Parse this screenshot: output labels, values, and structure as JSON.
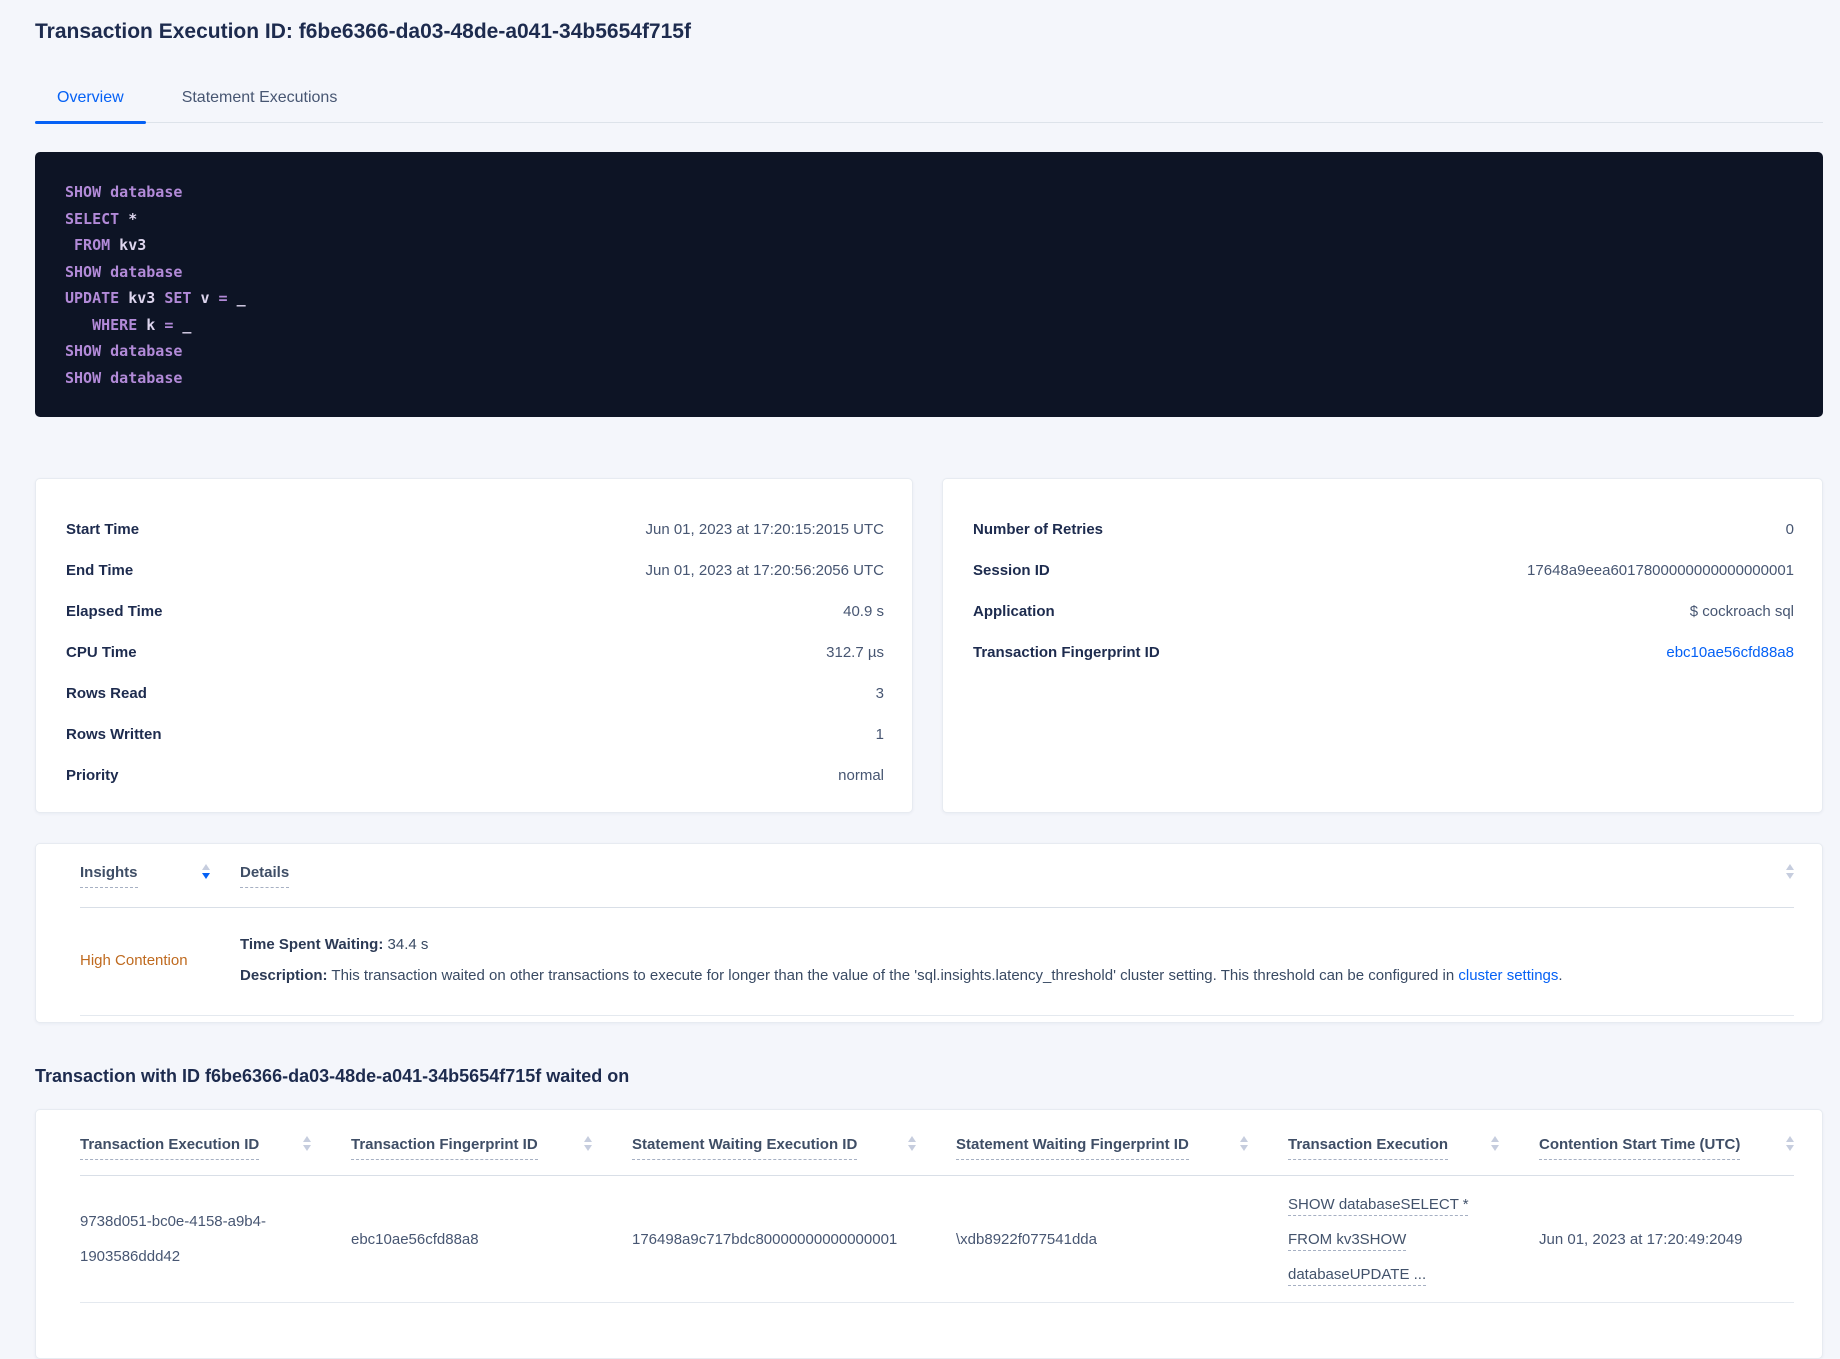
{
  "page": {
    "title": "Transaction Execution ID: f6be6366-da03-48de-a041-34b5654f715f"
  },
  "tabs": {
    "overview": "Overview",
    "statement_executions": "Statement Executions"
  },
  "sql": {
    "lines": [
      {
        "parts": [
          {
            "text": "SHOW database",
            "type": "kw"
          }
        ]
      },
      {
        "parts": [
          {
            "text": "SELECT",
            "type": "kw"
          },
          {
            "text": " *",
            "type": "id"
          }
        ]
      },
      {
        "parts": [
          {
            "text": " FROM",
            "type": "kw"
          },
          {
            "text": " kv3",
            "type": "id"
          }
        ]
      },
      {
        "parts": [
          {
            "text": "SHOW database",
            "type": "kw"
          }
        ]
      },
      {
        "parts": [
          {
            "text": "UPDATE",
            "type": "kw"
          },
          {
            "text": " kv3",
            "type": "id"
          },
          {
            "text": " SET",
            "type": "kw"
          },
          {
            "text": " v",
            "type": "id"
          },
          {
            "text": " =",
            "type": "kw"
          },
          {
            "text": " _",
            "type": "id"
          }
        ]
      },
      {
        "parts": [
          {
            "text": "   WHERE",
            "type": "kw"
          },
          {
            "text": " k",
            "type": "id"
          },
          {
            "text": " =",
            "type": "kw"
          },
          {
            "text": " _",
            "type": "id"
          }
        ]
      },
      {
        "parts": [
          {
            "text": "SHOW database",
            "type": "kw"
          }
        ]
      },
      {
        "parts": [
          {
            "text": "SHOW database",
            "type": "kw"
          }
        ]
      }
    ]
  },
  "time_stats": {
    "rows": [
      {
        "label": "Start Time",
        "value": "Jun 01, 2023 at 17:20:15:2015 UTC"
      },
      {
        "label": "End Time",
        "value": "Jun 01, 2023 at 17:20:56:2056 UTC"
      },
      {
        "label": "Elapsed Time",
        "value": "40.9 s"
      },
      {
        "label": "CPU Time",
        "value": "312.7 µs"
      },
      {
        "label": "Rows Read",
        "value": "3"
      },
      {
        "label": "Rows Written",
        "value": "1"
      },
      {
        "label": "Priority",
        "value": "normal"
      }
    ]
  },
  "exec_stats": {
    "rows": [
      {
        "label": "Number of Retries",
        "value": "0"
      },
      {
        "label": "Session ID",
        "value": "17648a9eea6017800000000000000001"
      },
      {
        "label": "Application",
        "value": "$ cockroach sql"
      },
      {
        "label": "Transaction Fingerprint ID",
        "value": "ebc10ae56cfd88a8"
      }
    ]
  },
  "insights_table": {
    "insights_col": "Insights",
    "details_col": "Details",
    "row": {
      "insight": "High Contention",
      "waiting_label": "Time Spent Waiting:",
      "waiting_value": " 34.4 s",
      "description_label": "Description:",
      "description_text": " This transaction waited on other transactions to execute for longer than the value of the 'sql.insights.latency_threshold' cluster setting. This threshold can be configured in ",
      "description_link": "cluster settings",
      "description_suffix": "."
    }
  },
  "waited_section": {
    "heading": "Transaction with ID f6be6366-da03-48de-a041-34b5654f715f waited on",
    "columns": [
      "Transaction Execution ID",
      "Transaction Fingerprint ID",
      "Statement Waiting Execution ID",
      "Statement Waiting Fingerprint ID",
      "Transaction Execution",
      "Contention Start Time (UTC)"
    ],
    "row": {
      "transaction_execution_id": "9738d051-bc0e-4158-a9b4-1903586ddd42",
      "transaction_fingerprint_id": "ebc10ae56cfd88a8",
      "statement_waiting_execution_id": "176498a9c717bdc80000000000000001",
      "statement_waiting_fingerprint_id": "\\xdb8922f077541dda",
      "transaction_execution": "SHOW databaseSELECT * FROM kv3SHOW databaseUPDATE ...",
      "contention_start_time": "Jun 01, 2023 at 17:20:49:2049"
    }
  },
  "colors": {
    "accent_blue": "#0561f5",
    "insight_orange": "#bf6a1f",
    "sql_background": "#0d1425",
    "sql_keyword": "#b28ad8",
    "sql_identifier": "#ddd5ee",
    "page_background": "#f4f6fb"
  }
}
